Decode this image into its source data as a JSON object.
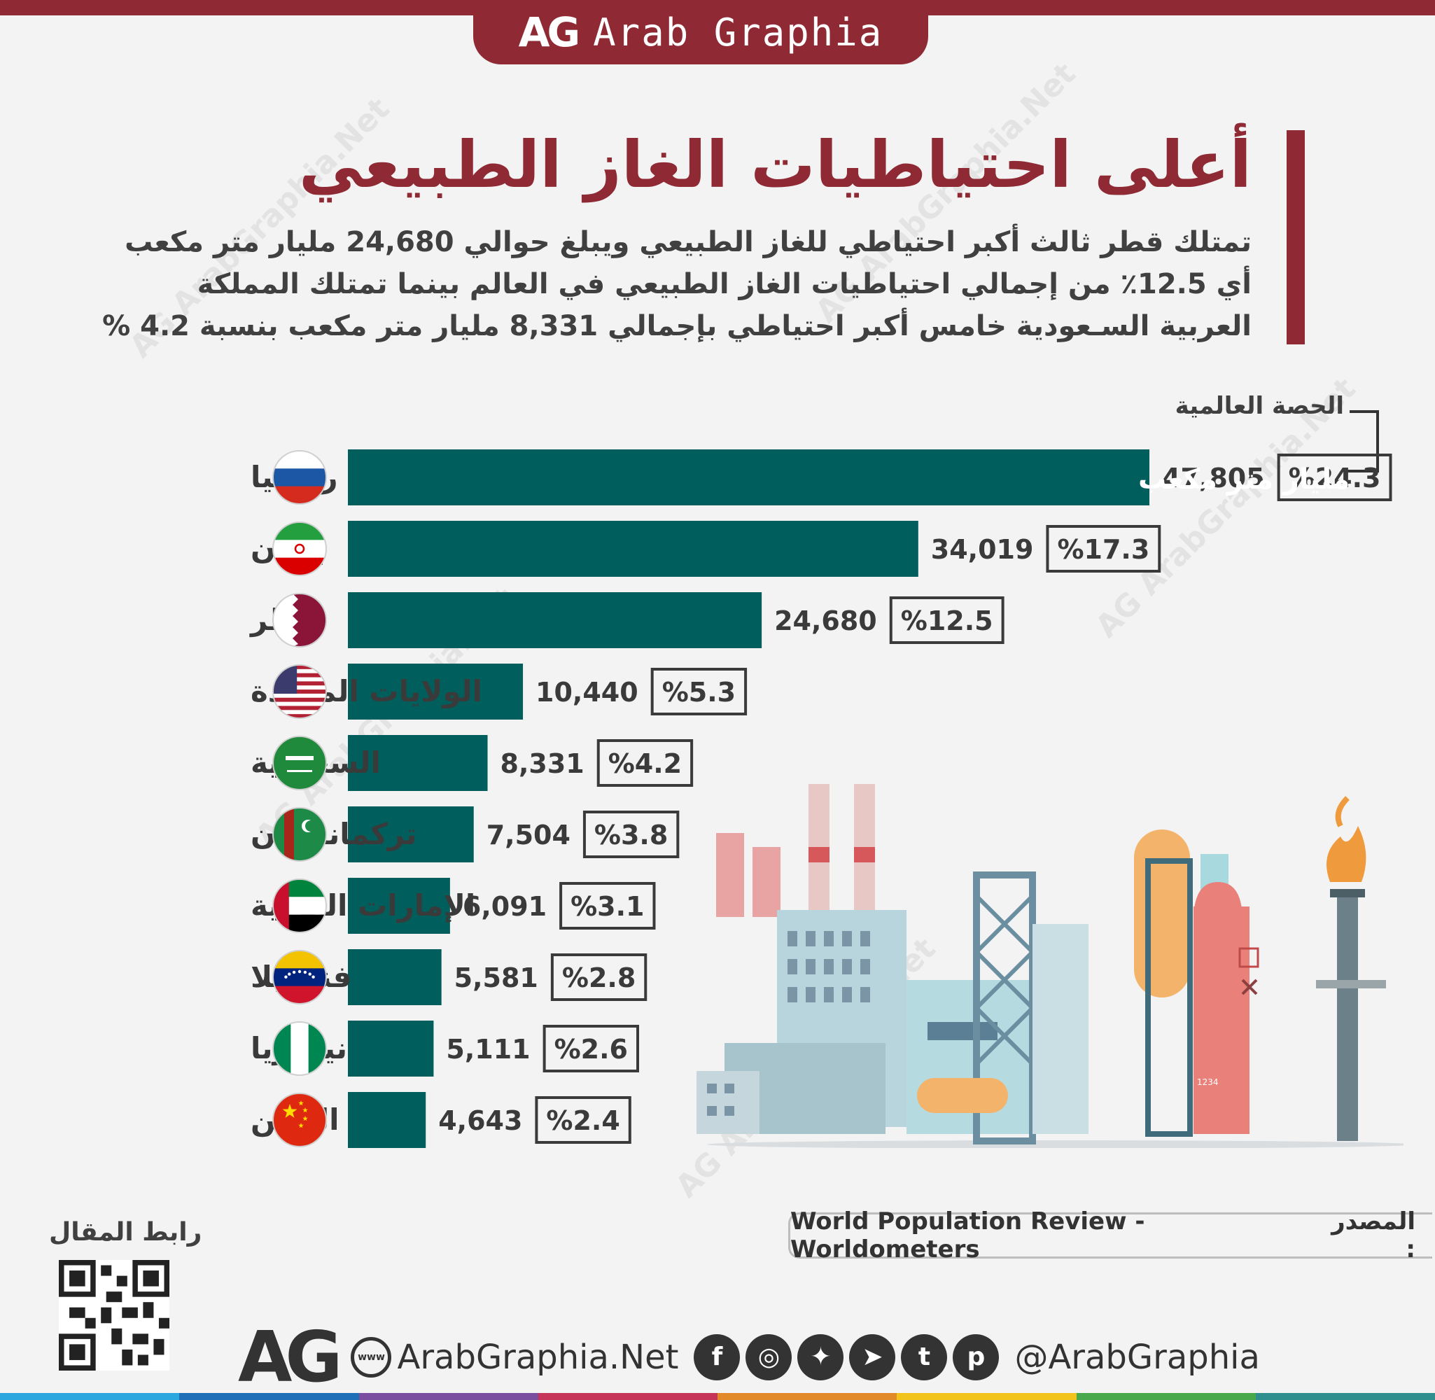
{
  "brand": {
    "logo": "AG",
    "name": "Arab Graphia"
  },
  "title": "أعلى احتياطيات الغاز الطبيعي",
  "description": [
    "تمتلك قطر ثالث أكبر احتياطي للغاز الطبيعي ويبلغ حوالي 24,680 مليار متر مكعب",
    "أي 12.5٪ من إجمالي احتياطيات الغاز الطبيعي في العالم بينما تمتلك المملكة",
    "العربية السـعودية خامس أكبر احتياطي بإجمالي 8,331 مليار متر مكعب بنسبة 4.2 %"
  ],
  "share_label": "الحصة العالمية",
  "chart_data": {
    "type": "bar",
    "orientation": "horizontal",
    "unit_label": "مليار متر مكعب",
    "categories": [
      "روسيا",
      "إيران",
      "قطر",
      "الولايات المتحدة",
      "السعودية",
      "تركمانستان",
      "الإمارات العربية",
      "فنزويلا",
      "نيجيريا",
      "الصين"
    ],
    "values": [
      47805,
      34019,
      24680,
      10440,
      8331,
      7504,
      6091,
      5581,
      5111,
      4643
    ],
    "value_labels": [
      "47,805",
      "34,019",
      "24,680",
      "10,440",
      "8,331",
      "7,504",
      "6,091",
      "5,581",
      "5,111",
      "4,643"
    ],
    "share_labels": [
      "%24.3",
      "%17.3",
      "%12.5",
      "%5.3",
      "%4.2",
      "%3.8",
      "%3.1",
      "%2.8",
      "%2.6",
      "%2.4"
    ],
    "bar_color": "#005f5c",
    "flags": [
      "russia-flag",
      "iran-flag",
      "qatar-flag",
      "usa-flag",
      "saudi-flag",
      "turkmenistan-flag",
      "uae-flag",
      "venezuela-flag",
      "nigeria-flag",
      "china-flag"
    ]
  },
  "source": {
    "label": "المصدر :",
    "text": "World Population Review - Worldometers"
  },
  "qr_label": "رابط المقال",
  "footer": {
    "logo": "AG",
    "website": "ArabGraphia.Net",
    "handle": "@ArabGraphia",
    "globe_text": "www"
  },
  "social_icons": [
    "facebook-icon",
    "instagram-icon",
    "twitter-icon",
    "telegram-icon",
    "tumblr-icon",
    "pinterest-icon"
  ],
  "colors": {
    "brand": "#8f2a35",
    "bar": "#005f5c",
    "text": "#3a3a3a"
  }
}
